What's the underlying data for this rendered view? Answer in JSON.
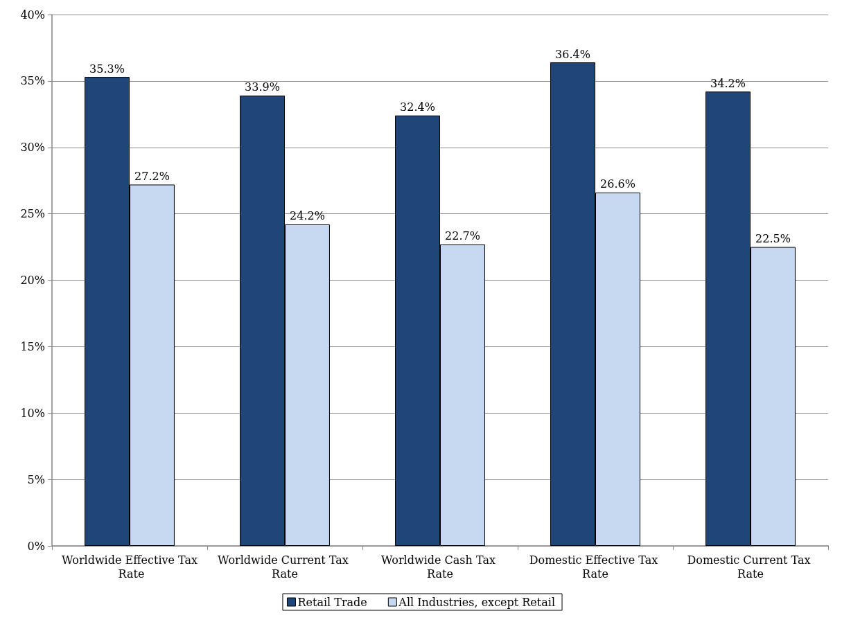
{
  "chart_data": {
    "type": "bar",
    "categories": [
      "Worldwide Effective Tax Rate",
      "Worldwide Current Tax Rate",
      "Worldwide Cash Tax Rate",
      "Domestic Effective Tax Rate",
      "Domestic Current Tax Rate"
    ],
    "series": [
      {
        "name": "Retail Trade",
        "color": "#1f4579",
        "values": [
          35.3,
          33.9,
          32.4,
          36.4,
          34.2
        ],
        "value_labels": [
          "35.3%",
          "33.9%",
          "32.4%",
          "36.4%",
          "34.2%"
        ]
      },
      {
        "name": "All Industries, except Retail",
        "color": "#c6d9f0",
        "values": [
          27.2,
          24.2,
          22.7,
          26.6,
          22.5
        ],
        "value_labels": [
          "27.2%",
          "24.2%",
          "22.7%",
          "26.6%",
          "22.5%"
        ]
      }
    ],
    "ylim": [
      0,
      40
    ],
    "yticks": [
      {
        "value": 0,
        "label": "0%"
      },
      {
        "value": 5,
        "label": "5%"
      },
      {
        "value": 10,
        "label": "10%"
      },
      {
        "value": 15,
        "label": "15%"
      },
      {
        "value": 20,
        "label": "20%"
      },
      {
        "value": 25,
        "label": "25%"
      },
      {
        "value": 30,
        "label": "30%"
      },
      {
        "value": 35,
        "label": "35%"
      },
      {
        "value": 40,
        "label": "40%"
      }
    ],
    "grid": "y",
    "legend": "bottom"
  }
}
